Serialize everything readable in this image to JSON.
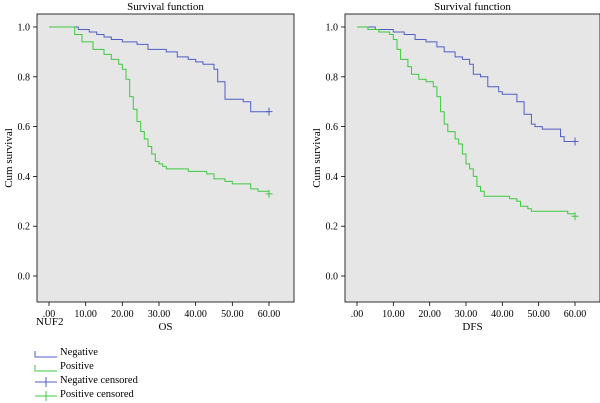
{
  "legend": {
    "title": "NUF2",
    "items": [
      {
        "label": "Negative",
        "color": "#4f5fc4",
        "kind": "line"
      },
      {
        "label": "Positive",
        "color": "#3fc93f",
        "kind": "line"
      },
      {
        "label": "Negative censored",
        "color": "#4f5fc4",
        "kind": "censor"
      },
      {
        "label": "Positive censored",
        "color": "#3fc93f",
        "kind": "censor"
      }
    ]
  },
  "chart_data": [
    {
      "type": "line",
      "step": true,
      "title": "Survival function",
      "xlabel": "OS",
      "ylabel": "Cum survival",
      "xlim": [
        0,
        60
      ],
      "ylim": [
        0,
        1.0
      ],
      "xticks": [
        ".00",
        "10.00",
        "20.00",
        "30.00",
        "40.00",
        "50.00",
        "60.00"
      ],
      "yticks": [
        "0.0",
        "0.2",
        "0.4",
        "0.6",
        "0.8",
        "1.0"
      ],
      "background": "#e6e6e6",
      "series": [
        {
          "name": "Negative",
          "color": "#4f5fc4",
          "x": [
            0,
            8,
            11,
            13,
            15,
            17,
            20,
            24,
            27,
            32,
            35,
            38,
            40,
            42,
            45,
            46,
            48,
            53,
            55,
            60
          ],
          "y": [
            1.0,
            0.99,
            0.98,
            0.97,
            0.96,
            0.95,
            0.94,
            0.93,
            0.91,
            0.9,
            0.88,
            0.87,
            0.86,
            0.85,
            0.83,
            0.78,
            0.71,
            0.7,
            0.66,
            0.66
          ],
          "censored": [
            [
              60,
              0.66
            ]
          ]
        },
        {
          "name": "Positive",
          "color": "#3fc93f",
          "x": [
            0,
            7,
            9,
            12,
            15,
            17,
            19,
            20,
            21,
            22,
            23,
            24,
            25,
            26,
            27,
            28,
            29,
            30,
            31,
            32,
            33,
            34,
            38,
            43,
            45,
            48,
            50,
            55,
            57,
            60
          ],
          "y": [
            1.0,
            0.97,
            0.94,
            0.91,
            0.89,
            0.87,
            0.85,
            0.83,
            0.79,
            0.72,
            0.67,
            0.62,
            0.58,
            0.55,
            0.52,
            0.49,
            0.46,
            0.45,
            0.44,
            0.43,
            0.43,
            0.43,
            0.42,
            0.41,
            0.39,
            0.38,
            0.37,
            0.35,
            0.34,
            0.33
          ],
          "censored": [
            [
              60,
              0.33
            ]
          ]
        }
      ]
    },
    {
      "type": "line",
      "step": true,
      "title": "Survival function",
      "xlabel": "DFS",
      "ylabel": "Cum survival",
      "xlim": [
        0,
        60
      ],
      "ylim": [
        0,
        1.0
      ],
      "xticks": [
        ".00",
        "10.00",
        "20.00",
        "30.00",
        "40.00",
        "50.00",
        "60.00"
      ],
      "yticks": [
        "0.0",
        "0.2",
        "0.4",
        "0.6",
        "0.8",
        "1.0"
      ],
      "background": "#e6e6e6",
      "series": [
        {
          "name": "Negative",
          "color": "#4f5fc4",
          "x": [
            0,
            5,
            10,
            13,
            16,
            19,
            22,
            24,
            27,
            29,
            31,
            32,
            34,
            36,
            39,
            40,
            44,
            46,
            48,
            49,
            51,
            56,
            57,
            60
          ],
          "y": [
            1.0,
            0.99,
            0.98,
            0.97,
            0.95,
            0.94,
            0.92,
            0.9,
            0.88,
            0.87,
            0.85,
            0.81,
            0.8,
            0.76,
            0.74,
            0.73,
            0.7,
            0.65,
            0.61,
            0.6,
            0.59,
            0.56,
            0.54,
            0.54
          ],
          "censored": [
            [
              60,
              0.54
            ]
          ]
        },
        {
          "name": "Positive",
          "color": "#3fc93f",
          "x": [
            0,
            3,
            6,
            9,
            10,
            11,
            12,
            14,
            15,
            17,
            19,
            21,
            22,
            23,
            24,
            25,
            27,
            28,
            29,
            30,
            31,
            32,
            33,
            34,
            35,
            37,
            42,
            44,
            45,
            47,
            48,
            58,
            60
          ],
          "y": [
            1.0,
            0.99,
            0.98,
            0.97,
            0.95,
            0.91,
            0.87,
            0.84,
            0.81,
            0.79,
            0.78,
            0.76,
            0.72,
            0.66,
            0.61,
            0.58,
            0.55,
            0.53,
            0.49,
            0.45,
            0.43,
            0.4,
            0.36,
            0.34,
            0.32,
            0.32,
            0.31,
            0.3,
            0.28,
            0.27,
            0.26,
            0.25,
            0.24
          ],
          "censored": [
            [
              60,
              0.24
            ]
          ]
        }
      ]
    }
  ]
}
